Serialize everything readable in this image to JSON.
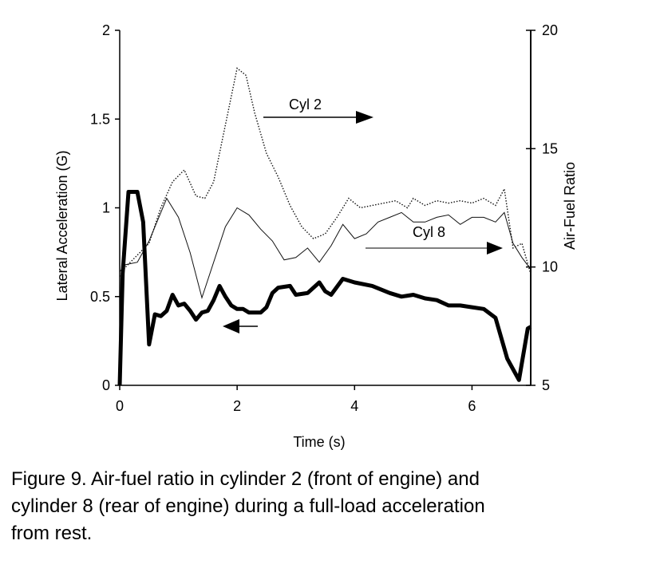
{
  "chart_data": {
    "type": "line",
    "title": "",
    "xlabel": "Time (s)",
    "ylabel_left": "Lateral Acceleration (G)",
    "ylabel_right": "Air-Fuel Ratio",
    "xlim": [
      0,
      7
    ],
    "ylim_left": [
      0,
      2
    ],
    "ylim_right": [
      5,
      20
    ],
    "x_ticks": [
      "0",
      "2",
      "4",
      "6"
    ],
    "y_left_ticks": [
      "0",
      "0.5",
      "1",
      "1.5",
      "2"
    ],
    "y_right_ticks": [
      "5",
      "10",
      "15",
      "20"
    ],
    "grid": false,
    "annotations": [
      {
        "id": "cyl2",
        "text": "Cyl 2",
        "arrow": "right"
      },
      {
        "id": "cyl8",
        "text": "Cyl 8",
        "arrow": "right"
      },
      {
        "id": "accel",
        "text": "",
        "arrow": "left"
      }
    ],
    "series": [
      {
        "name": "Cyl 2",
        "axis": "right",
        "style": "dotted",
        "x": [
          0,
          0.1,
          0.3,
          0.5,
          0.7,
          0.9,
          1.1,
          1.3,
          1.45,
          1.6,
          1.8,
          2.0,
          2.15,
          2.3,
          2.5,
          2.7,
          2.9,
          3.1,
          3.3,
          3.5,
          3.7,
          3.9,
          4.1,
          4.3,
          4.5,
          4.7,
          4.9,
          5.0,
          5.2,
          5.4,
          5.6,
          5.8,
          6.0,
          6.2,
          6.4,
          6.55,
          6.7,
          6.85,
          7.0
        ],
        "values": [
          9.6,
          10.0,
          10.5,
          11.0,
          12.5,
          13.6,
          14.1,
          13.0,
          12.9,
          13.6,
          16.0,
          18.4,
          18.1,
          16.5,
          14.8,
          13.8,
          12.6,
          11.7,
          11.2,
          11.4,
          12.1,
          12.9,
          12.5,
          12.6,
          12.7,
          12.8,
          12.5,
          12.9,
          12.6,
          12.8,
          12.7,
          12.8,
          12.7,
          12.9,
          12.6,
          13.3,
          10.8,
          11.0,
          9.7
        ]
      },
      {
        "name": "Cyl 8",
        "axis": "right",
        "style": "solid-thin",
        "x": [
          0,
          0.1,
          0.3,
          0.5,
          0.8,
          1.0,
          1.2,
          1.4,
          1.6,
          1.8,
          2.0,
          2.2,
          2.4,
          2.6,
          2.8,
          3.0,
          3.2,
          3.4,
          3.6,
          3.8,
          4.0,
          4.2,
          4.4,
          4.6,
          4.8,
          5.0,
          5.2,
          5.4,
          5.6,
          5.8,
          6.0,
          6.2,
          6.4,
          6.55,
          6.7,
          6.85,
          7.0
        ],
        "values": [
          9.8,
          10.1,
          10.2,
          11.1,
          12.9,
          12.1,
          10.6,
          8.7,
          10.2,
          11.7,
          12.5,
          12.2,
          11.6,
          11.1,
          10.3,
          10.4,
          10.8,
          10.2,
          10.9,
          11.8,
          11.2,
          11.4,
          11.9,
          12.1,
          12.3,
          11.9,
          11.9,
          12.1,
          12.2,
          11.8,
          12.1,
          12.1,
          11.9,
          12.3,
          11.0,
          10.4,
          9.9
        ]
      },
      {
        "name": "",
        "axis": "left",
        "style": "solid-bold",
        "x": [
          0,
          0.05,
          0.15,
          0.3,
          0.4,
          0.5,
          0.6,
          0.7,
          0.8,
          0.9,
          1.0,
          1.1,
          1.2,
          1.3,
          1.4,
          1.5,
          1.6,
          1.7,
          1.8,
          1.9,
          2.0,
          2.1,
          2.2,
          2.4,
          2.5,
          2.6,
          2.7,
          2.9,
          3.0,
          3.2,
          3.4,
          3.5,
          3.6,
          3.8,
          4.0,
          4.3,
          4.6,
          4.8,
          5.0,
          5.2,
          5.4,
          5.6,
          5.8,
          6.0,
          6.2,
          6.4,
          6.6,
          6.8,
          6.95,
          7.0
        ],
        "values": [
          0,
          0.63,
          1.09,
          1.09,
          0.92,
          0.23,
          0.4,
          0.39,
          0.42,
          0.51,
          0.45,
          0.46,
          0.42,
          0.37,
          0.41,
          0.42,
          0.48,
          0.56,
          0.5,
          0.45,
          0.43,
          0.43,
          0.41,
          0.41,
          0.44,
          0.52,
          0.55,
          0.56,
          0.51,
          0.52,
          0.58,
          0.53,
          0.51,
          0.6,
          0.58,
          0.56,
          0.52,
          0.5,
          0.51,
          0.49,
          0.48,
          0.45,
          0.45,
          0.44,
          0.43,
          0.38,
          0.15,
          0.03,
          0.32,
          0.33
        ]
      }
    ]
  },
  "caption": {
    "line1": "Figure 9.  Air-fuel ratio in cylinder 2 (front of engine) and",
    "line2": "cylinder 8 (rear of engine) during a full-load acceleration",
    "line3": "from rest."
  }
}
